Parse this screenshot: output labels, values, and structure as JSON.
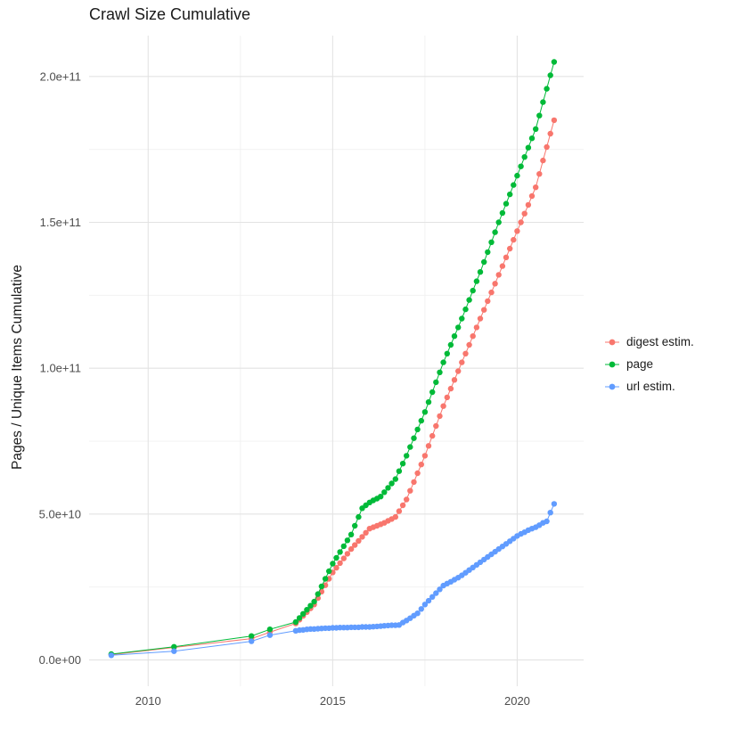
{
  "title": "Crawl Size Cumulative",
  "ylabel": "Pages / Unique Items Cumulative",
  "colors": {
    "background": "#FFFFFF",
    "grid_major": "#E3E3E3",
    "grid_minor": "#F0F0F0",
    "tick_label": "#4D4D4D",
    "text": "#1A1A1A"
  },
  "legend": {
    "position": "right",
    "items": [
      {
        "label": "digest estim.",
        "color": "#F8766D"
      },
      {
        "label": "page",
        "color": "#00BA38"
      },
      {
        "label": "url estim.",
        "color": "#619CFF"
      }
    ]
  },
  "chart_data": {
    "type": "scatter",
    "title": "Crawl Size Cumulative",
    "xlabel": "",
    "ylabel": "Pages / Unique Items Cumulative",
    "grid": true,
    "legend_position": "right",
    "x_domain": [
      2008.4,
      2021.8
    ],
    "y_domain_e9": [
      -9,
      214
    ],
    "y_unit": 1000000000,
    "x_ticks": {
      "major": [
        2010,
        2015,
        2020
      ],
      "labels": [
        "2010",
        "2015",
        "2020"
      ],
      "minor": [
        2012.5,
        2017.5
      ]
    },
    "y_ticks": {
      "major_e9": [
        0,
        50,
        100,
        150,
        200
      ],
      "labels": [
        "0.0e+00",
        "5.0e+10",
        "1.0e+11",
        "1.5e+11",
        "2.0e+11"
      ],
      "minor_e9": [
        25,
        75,
        125,
        175
      ]
    },
    "x": [
      2009.0,
      2010.7,
      2012.8,
      2013.3,
      2014.0,
      2014.1,
      2014.2,
      2014.3,
      2014.4,
      2014.5,
      2014.6,
      2014.7,
      2014.8,
      2014.9,
      2015.0,
      2015.1,
      2015.2,
      2015.3,
      2015.4,
      2015.5,
      2015.6,
      2015.7,
      2015.8,
      2015.9,
      2016.0,
      2016.1,
      2016.2,
      2016.3,
      2016.4,
      2016.5,
      2016.6,
      2016.7,
      2016.8,
      2016.9,
      2017.0,
      2017.1,
      2017.2,
      2017.3,
      2017.4,
      2017.5,
      2017.6,
      2017.7,
      2017.8,
      2017.9,
      2018.0,
      2018.1,
      2018.2,
      2018.3,
      2018.4,
      2018.5,
      2018.6,
      2018.7,
      2018.8,
      2018.9,
      2019.0,
      2019.1,
      2019.2,
      2019.3,
      2019.4,
      2019.5,
      2019.6,
      2019.7,
      2019.8,
      2019.9,
      2020.0,
      2020.1,
      2020.2,
      2020.3,
      2020.4,
      2020.5,
      2020.6,
      2020.7,
      2020.8,
      2020.9,
      2021.0
    ],
    "series": [
      {
        "name": "digest estim.",
        "color": "#F8766D",
        "values_e9": [
          1.8,
          4.3,
          7.3,
          9.5,
          12.5,
          13.8,
          15.1,
          16.4,
          17.7,
          19.0,
          21.2,
          23.4,
          25.6,
          27.8,
          30.0,
          31.6,
          33.2,
          34.8,
          36.4,
          38.0,
          39.4,
          40.8,
          42.2,
          43.6,
          45.0,
          45.5,
          46.0,
          46.5,
          47.0,
          47.7,
          48.3,
          49.0,
          51.0,
          53.0,
          55.0,
          58.0,
          61.0,
          64.0,
          67.0,
          70.0,
          73.4,
          76.8,
          80.2,
          83.6,
          87.0,
          90.0,
          93.0,
          96.0,
          99.0,
          102.0,
          105.0,
          108.0,
          111.0,
          114.0,
          117.0,
          120.0,
          123.0,
          126.0,
          129.0,
          132.0,
          135.0,
          138.0,
          141.0,
          144.0,
          147.0,
          150.0,
          153.0,
          156.0,
          159.0,
          162.0,
          166.6,
          171.2,
          175.8,
          180.4,
          185.0
        ]
      },
      {
        "name": "page",
        "color": "#00BA38",
        "values_e9": [
          2.0,
          4.5,
          8.2,
          10.5,
          13.0,
          14.4,
          15.8,
          17.2,
          18.6,
          20.0,
          22.6,
          25.2,
          27.8,
          30.4,
          33.0,
          35.0,
          37.0,
          39.0,
          41.0,
          43.0,
          46.0,
          49.0,
          52.0,
          53.0,
          54.0,
          54.7,
          55.3,
          56.0,
          57.5,
          59.0,
          60.5,
          62.0,
          64.7,
          67.3,
          70.0,
          73.0,
          76.0,
          79.0,
          82.0,
          85.0,
          88.4,
          91.8,
          95.2,
          98.6,
          102.0,
          105.0,
          108.0,
          111.0,
          114.0,
          117.0,
          120.2,
          123.4,
          126.6,
          129.8,
          133.0,
          136.4,
          139.8,
          143.2,
          146.6,
          150.0,
          153.2,
          156.4,
          159.6,
          162.8,
          166.0,
          169.2,
          172.4,
          175.6,
          178.8,
          182.0,
          186.6,
          191.2,
          195.8,
          200.4,
          205.0
        ]
      },
      {
        "name": "url estim.",
        "color": "#619CFF",
        "values_e9": [
          1.6,
          3.0,
          6.4,
          8.5,
          10.0,
          10.2,
          10.3,
          10.5,
          10.6,
          10.6,
          10.7,
          10.8,
          10.9,
          10.9,
          11.0,
          11.0,
          11.1,
          11.1,
          11.1,
          11.2,
          11.2,
          11.2,
          11.3,
          11.3,
          11.3,
          11.4,
          11.5,
          11.6,
          11.7,
          11.8,
          11.9,
          11.9,
          12.0,
          12.8,
          13.5,
          14.3,
          15.2,
          16.0,
          17.5,
          19.0,
          20.3,
          21.6,
          22.9,
          24.2,
          25.5,
          26.2,
          26.8,
          27.5,
          28.2,
          29.0,
          29.9,
          30.8,
          31.7,
          32.6,
          33.5,
          34.4,
          35.3,
          36.2,
          37.1,
          38.0,
          38.9,
          39.8,
          40.7,
          41.6,
          42.5,
          43.2,
          43.8,
          44.5,
          45.0,
          45.5,
          46.2,
          47.0,
          47.5,
          50.5,
          53.5
        ]
      }
    ]
  }
}
